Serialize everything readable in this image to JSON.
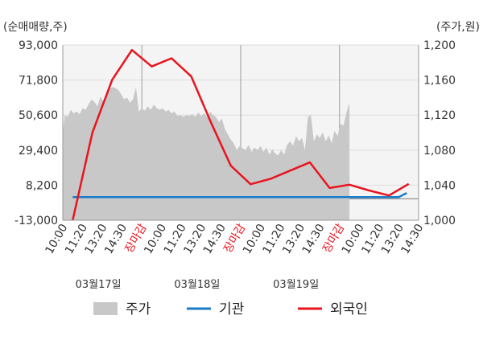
{
  "chart_data": {
    "type": "line",
    "left_axis": {
      "unit_label": "(순매매량,주)",
      "ticks": [
        "93,000",
        "71,800",
        "50,600",
        "29,400",
        "8,200",
        "-13,000"
      ],
      "values": [
        93000,
        71800,
        50600,
        29400,
        8200,
        -13000
      ],
      "ylim": [
        -13000,
        93000
      ]
    },
    "right_axis": {
      "unit_label": "(주가,원)",
      "ticks": [
        "1,200",
        "1,160",
        "1,120",
        "1,080",
        "1,040",
        "1,000"
      ],
      "values": [
        1200,
        1160,
        1120,
        1080,
        1040,
        1000
      ],
      "ylim": [
        1000,
        1200
      ]
    },
    "x_ticks": [
      {
        "label": "10:00",
        "red": false
      },
      {
        "label": "11:20",
        "red": false
      },
      {
        "label": "13:20",
        "red": false
      },
      {
        "label": "14:30",
        "red": false
      },
      {
        "label": "장마감",
        "red": true
      },
      {
        "label": "10:00",
        "red": false
      },
      {
        "label": "11:20",
        "red": false
      },
      {
        "label": "13:20",
        "red": false
      },
      {
        "label": "14:30",
        "red": false
      },
      {
        "label": "장마감",
        "red": true
      },
      {
        "label": "10:00",
        "red": false
      },
      {
        "label": "11:20",
        "red": false
      },
      {
        "label": "13:20",
        "red": false
      },
      {
        "label": "14:30",
        "red": false
      },
      {
        "label": "장마감",
        "red": true
      },
      {
        "label": "10:00",
        "red": false
      },
      {
        "label": "11:20",
        "red": false
      },
      {
        "label": "13:20",
        "red": false
      },
      {
        "label": "14:30",
        "red": false
      }
    ],
    "dates": [
      "03월17일",
      "03월18일",
      "03월19일"
    ],
    "x_range": [
      0,
      18
    ],
    "price_series": {
      "name": "주가",
      "color": "#c8c8c8",
      "x": [
        0,
        0.1,
        0.25,
        0.4,
        0.55,
        0.7,
        0.85,
        1.0,
        1.15,
        1.3,
        1.45,
        1.6,
        1.75,
        1.9,
        2.05,
        2.2,
        2.35,
        2.5,
        2.65,
        2.8,
        2.95,
        3.1,
        3.25,
        3.4,
        3.55,
        3.7,
        3.85,
        4.0,
        4.15,
        4.3,
        4.45,
        4.6,
        4.75,
        4.9,
        5.05,
        5.2,
        5.35,
        5.5,
        5.65,
        5.8,
        5.95,
        6.1,
        6.25,
        6.4,
        6.55,
        6.7,
        6.85,
        7.0,
        7.15,
        7.3,
        7.45,
        7.6,
        7.75,
        7.9,
        8.05,
        8.2,
        8.35,
        8.5,
        8.65,
        8.8,
        8.95,
        9.1,
        9.25,
        9.4,
        9.55,
        9.7,
        9.85,
        10.0,
        10.15,
        10.3,
        10.45,
        10.6,
        10.75,
        10.9,
        11.05,
        11.2,
        11.35,
        11.5,
        11.65,
        11.8,
        11.95,
        12.1,
        12.25,
        12.4,
        12.55,
        12.7,
        12.85,
        13.0,
        13.15,
        13.3,
        13.45,
        13.6,
        13.75,
        13.9,
        14.05,
        14.2,
        14.35,
        14.5
      ],
      "values": [
        1100,
        1120,
        1118,
        1126,
        1122,
        1124,
        1121,
        1128,
        1126,
        1132,
        1138,
        1135,
        1130,
        1141,
        1136,
        1144,
        1150,
        1152,
        1151,
        1149,
        1144,
        1138,
        1140,
        1134,
        1138,
        1152,
        1124,
        1128,
        1125,
        1130,
        1126,
        1132,
        1128,
        1126,
        1128,
        1124,
        1126,
        1122,
        1124,
        1119,
        1120,
        1118,
        1120,
        1119,
        1121,
        1118,
        1123,
        1119,
        1122,
        1118,
        1124,
        1120,
        1118,
        1112,
        1116,
        1104,
        1098,
        1092,
        1088,
        1080,
        1085,
        1082,
        1080,
        1086,
        1078,
        1083,
        1080,
        1085,
        1078,
        1083,
        1075,
        1081,
        1076,
        1074,
        1080,
        1075,
        1086,
        1090,
        1085,
        1096,
        1090,
        1094,
        1080,
        1118,
        1120,
        1090,
        1098,
        1094,
        1100,
        1090,
        1097,
        1088,
        1102,
        1096,
        1110,
        1108,
        1123,
        1134
      ]
    },
    "series": [
      {
        "name": "기관",
        "color": "#1a7bc8",
        "x": [
          0.5,
          16.5,
          17.0,
          17.4
        ],
        "values": [
          1000,
          1000,
          1000,
          3500
        ]
      },
      {
        "name": "외국인",
        "color": "#e8141e",
        "x": [
          0.5,
          1.5,
          2.5,
          3.5,
          4.5,
          5.5,
          6.5,
          7.5,
          8.5,
          9.5,
          10.5,
          11.5,
          12.5,
          13.5,
          14.5,
          15.5,
          16.5,
          17.5
        ],
        "values": [
          -13000,
          40000,
          72000,
          90000,
          80000,
          85000,
          74000,
          46000,
          20000,
          8800,
          12000,
          17000,
          22000,
          6500,
          8500,
          5000,
          2000,
          9000
        ]
      }
    ],
    "legend": [
      {
        "label": "주가",
        "kind": "area",
        "color": "#c8c8c8"
      },
      {
        "label": "기관",
        "kind": "line",
        "color": "#1a7bc8"
      },
      {
        "label": "외국인",
        "kind": "line",
        "color": "#e8141e"
      }
    ],
    "grid": true,
    "legend_position": "bottom"
  }
}
